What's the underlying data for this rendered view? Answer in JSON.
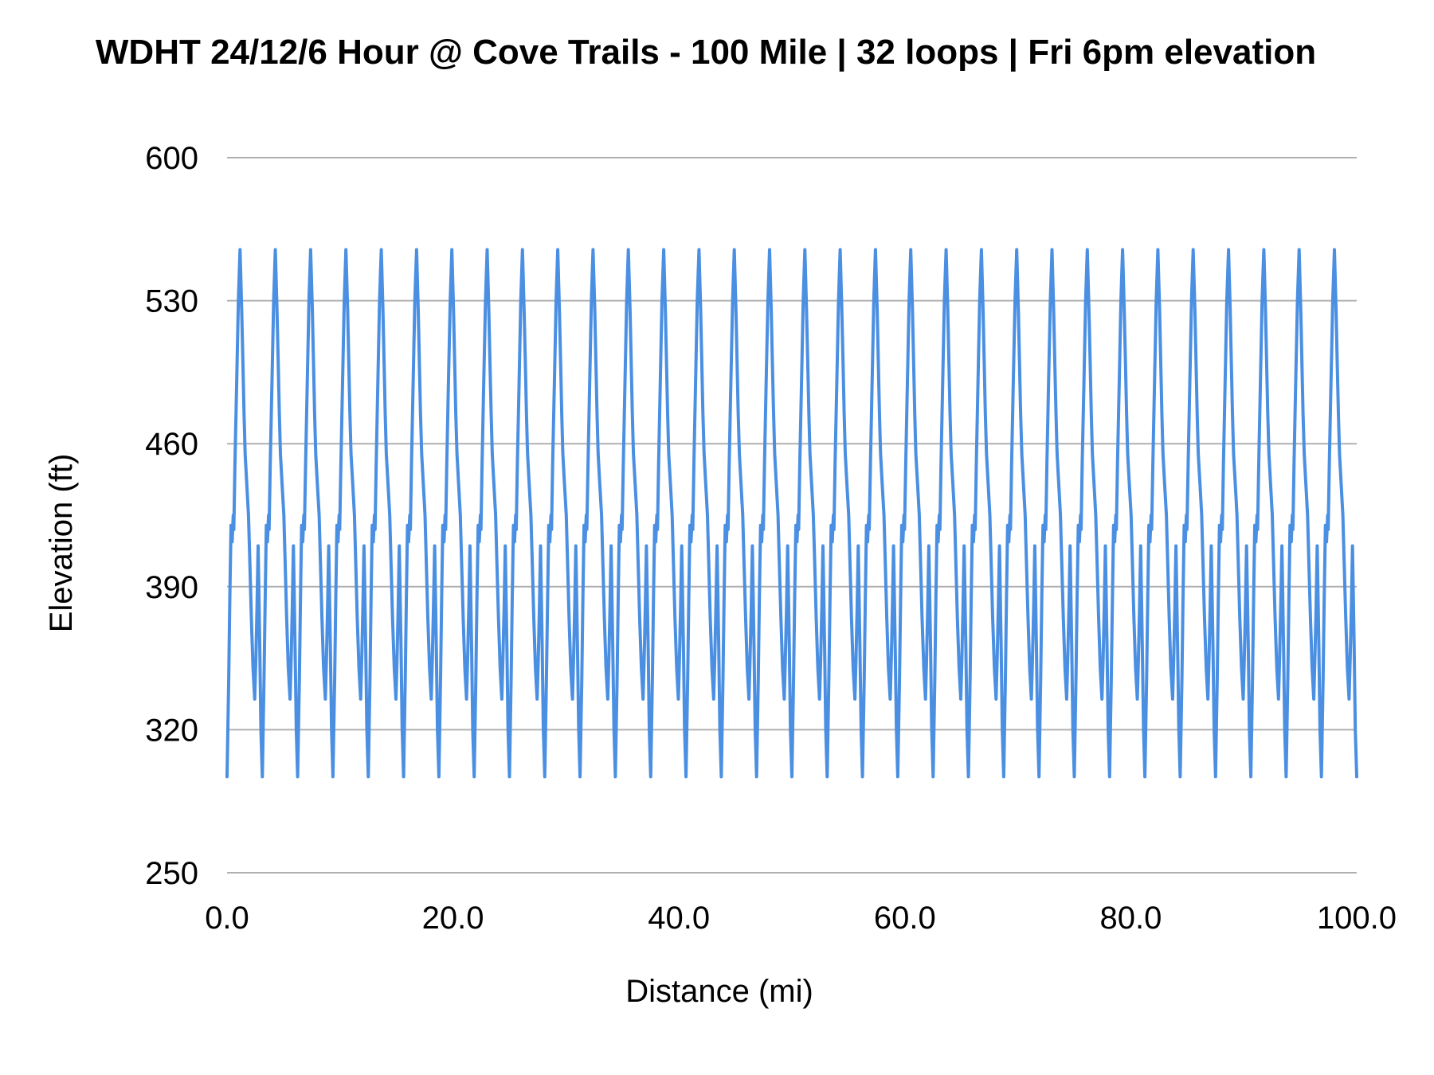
{
  "chart_data": {
    "type": "line",
    "title": "WDHT 24/12/6 Hour @ Cove Trails - 100 Mile | 32 loops | Fri 6pm elevation",
    "xlabel": "Distance (mi)",
    "ylabel": "Elevation (ft)",
    "xlim": [
      0,
      100
    ],
    "ylim": [
      250,
      600
    ],
    "x_ticks": [
      "0.0",
      "20.0",
      "40.0",
      "60.0",
      "80.0",
      "100.0"
    ],
    "y_ticks": [
      "600",
      "530",
      "460",
      "390",
      "320",
      "250"
    ],
    "grid": true,
    "legend": "none",
    "loops": 32,
    "loop_length_mi": 3.125,
    "loop_profile": {
      "x": [
        0,
        0.15,
        0.25,
        0.35,
        0.45,
        0.55,
        0.6,
        0.7,
        0.85,
        1.0,
        1.15,
        1.3,
        1.4,
        1.5,
        1.6,
        1.75,
        1.9,
        2.0,
        2.15,
        2.3,
        2.45,
        2.55,
        2.65,
        2.75,
        2.9,
        3.0,
        3.125
      ],
      "y": [
        297,
        345,
        385,
        420,
        412,
        425,
        418,
        450,
        490,
        530,
        555,
        525,
        500,
        475,
        455,
        440,
        425,
        405,
        375,
        350,
        335,
        355,
        380,
        410,
        360,
        320,
        297
      ]
    },
    "series_color": "#4a8fe2"
  }
}
